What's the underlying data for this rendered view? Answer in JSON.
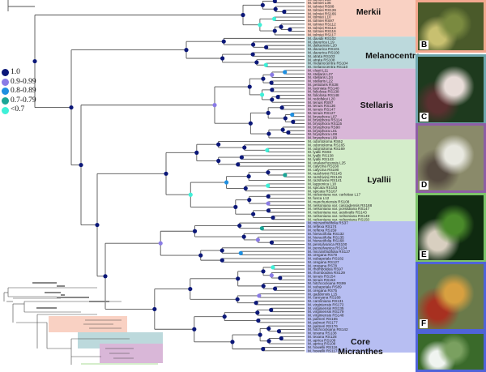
{
  "legend": {
    "items": [
      {
        "label": "1.0",
        "color": "#0b1778"
      },
      {
        "label": "0.9-0.99",
        "color": "#8a7be6"
      },
      {
        "label": "0.8-0.89",
        "color": "#1f8fe0"
      },
      {
        "label": "0.7-0.79",
        "color": "#1aa596"
      },
      {
        "label": "<0.7",
        "color": "#3ff0d8"
      }
    ]
  },
  "clades": [
    {
      "name": "Merkii",
      "color": "#f9d1c3",
      "tips": [
        "M. tolmiei L36",
        "M. tolmiei L06",
        "M. tolmiei RS88",
        "M. tolmiei RS126",
        "M. tolmiei RS166",
        "M. tolmiei L10",
        "M. tolmiei RS97",
        "M. tolmiei RS112",
        "M. tolmiei RS113",
        "M. tolmiei RS116",
        "M. tolmiei RS117"
      ]
    },
    {
      "name": "Melanocentra",
      "color": "#bcd9dc",
      "tips": [
        "M. davidii RS102",
        "M. davurica L19",
        "M. daliuensis L20",
        "M. davurica RS101",
        "M. davurica RS100",
        "M. atrata RS103",
        "M. atrata RS108",
        "M. melanocentra RS104",
        "M. melanocentra RS110"
      ]
    },
    {
      "name": "Stellaris",
      "color": "#d9b7d8",
      "tips": [
        "M. clusii L11",
        "M. stellaris L27",
        "M. stellaris L24",
        "M. stellaris L22",
        "M. petiolaris RS38",
        "M. laciniata RS140",
        "M. foliolosa RS138",
        "M. foliolosa RS148",
        "M. redofskyi L20",
        "M. tenuis RS97",
        "M. tenuis RS136",
        "M. tenuis RS147",
        "M. tenuis RS127",
        "M. bryophora L07",
        "M. bryophora RS114",
        "M. bryophora RS115",
        "M. bryophora RS90",
        "M. bryophora L01",
        "M. bryophora L08",
        "M. bryophora L09"
      ]
    },
    {
      "name": "Lyallii",
      "color": "#d4edca",
      "tips": [
        "M. odontoloma RS62",
        "M. odontoloma RS165",
        "M. odontoloma RS169",
        "M. lyallii RS93",
        "M. lyallii RS138",
        "M. lyallii RS143",
        "M. unalaschcensis L25",
        "M. calycina RS160",
        "M. calycina RS190",
        "M. razshivinii RS145",
        "M. razshivinii RS146",
        "M. razshivinii RS141",
        "M. lapponica L18",
        "M. spicata RS153",
        "M. spicata RS167",
        "M. nelsoniana var. carlottae L17",
        "M. fusca L12",
        "M. manchuriensis RS108",
        "M. nelsoniana var. cascadensis RS188",
        "M. nelsoniana var. porsildiana RS147",
        "M. nelsoniana var. aestivalis RS143",
        "M. nelsoniana var. nelsoniana RS149",
        "M. nelsoniana var. nelsoniana RS150"
      ]
    },
    {
      "name": "Core Micranthes",
      "color": "#b7bef2",
      "tips": [
        "M. micranthidifolia RS37",
        "M. reflexa RS174",
        "M. reflexa RS159",
        "M. hieraciifolia RS132",
        "M. hieraciifolia RS135",
        "M. hieraciifolia RS168",
        "M. pensylvanica RS100",
        "M. pensylvanica RS134",
        "M. micranthidifolia RS127",
        "M. oregana RS79",
        "M. subapetala RS182",
        "M. oregana RS127",
        "M. oregana RS78",
        "M. rhomboidea RS97",
        "M. rhomboidea RS129",
        "M. tenuis RS154",
        "M. tenuis RS153",
        "M. hitchcockiana RS99",
        "M. subapetala RS89",
        "M. oregana RS75",
        "M. gaddensis L15",
        "M. careyana RS168",
        "M. caroliniana RS131",
        "M. virginiensis RS172",
        "M. virginiensis RS135",
        "M. virginiensis RS179",
        "M. virginiensis RS148",
        "M. palmeri RS165",
        "M. palmeri RS177",
        "M. palmeri RS176",
        "M. hitchcockiana RS142",
        "M. texana RS138",
        "M. texana RS128",
        "M. aprica RS109",
        "M. aprica RS108",
        "M. howellii RS116",
        "M. howellii RS117"
      ]
    }
  ],
  "photos": [
    {
      "letter": "B",
      "border": "#f3a88f",
      "colors": [
        "#4a5a2a",
        "#c8c070",
        "#7a8a40"
      ]
    },
    {
      "letter": "C",
      "border": "#6fa7ad",
      "colors": [
        "#1e3a1e",
        "#5a3030",
        "#e8dcd8"
      ]
    },
    {
      "letter": "D",
      "border": "#8e5ea6",
      "colors": [
        "#8a8a6a",
        "#554a40",
        "#e8e8e0"
      ]
    },
    {
      "letter": "E",
      "border": "#7cc36a",
      "colors": [
        "#0f2a10",
        "#d8cfc0",
        "#4a8a2a"
      ]
    },
    {
      "letter": "F",
      "border": "#4f63d9",
      "colors": [
        "#6a7a4a",
        "#a83020",
        "#d8a040"
      ]
    },
    {
      "letter": "",
      "border": "#4f63d9",
      "colors": [
        "#3a6a2a",
        "#f0f4f0",
        "#7aa060"
      ]
    }
  ]
}
